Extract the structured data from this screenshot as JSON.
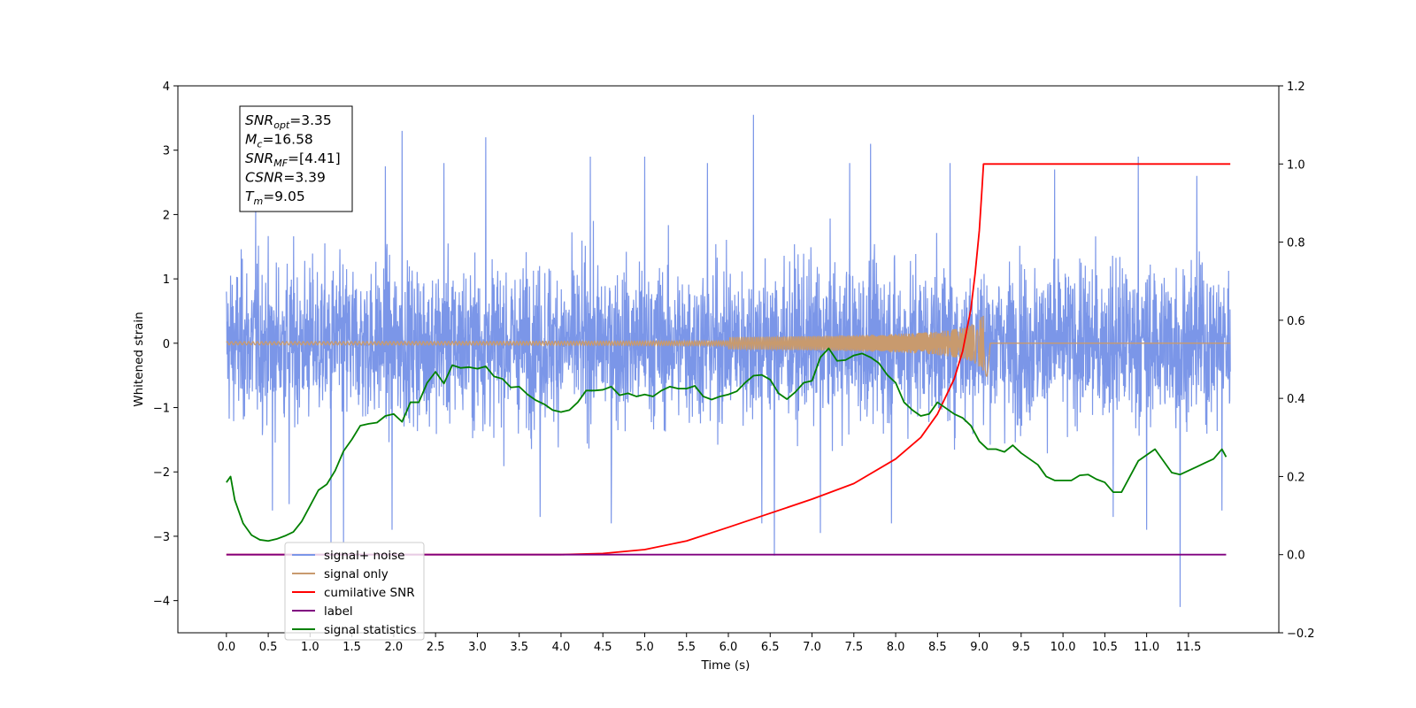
{
  "chart_data": {
    "type": "line",
    "title": "",
    "xlabel": "Time (s)",
    "ylabel": "Whitened strain",
    "y2label": "",
    "xlim": [
      -0.58,
      12.58
    ],
    "ylim": [
      -4.5,
      4.0
    ],
    "y2lim": [
      -0.2,
      1.2
    ],
    "x_ticks": [
      "0.0",
      "0.5",
      "1.0",
      "1.5",
      "2.0",
      "2.5",
      "3.0",
      "3.5",
      "4.0",
      "4.5",
      "5.0",
      "5.5",
      "6.0",
      "6.5",
      "7.0",
      "7.5",
      "8.0",
      "8.5",
      "9.0",
      "9.5",
      "10.0",
      "10.5",
      "11.0",
      "11.5"
    ],
    "y_ticks": [
      "4",
      "3",
      "2",
      "1",
      "0",
      "−1",
      "−2",
      "−3",
      "−4"
    ],
    "y2_ticks": [
      "1.2",
      "1.0",
      "0.8",
      "0.6",
      "0.4",
      "0.2",
      "0.0",
      "−0.2"
    ],
    "grid": false,
    "legend_position": "lower-left",
    "info_box": {
      "lines": [
        {
          "sym": "SNR",
          "sub": "opt",
          "val": "=3.35"
        },
        {
          "sym": "M",
          "sub": "c",
          "val": "=16.58"
        },
        {
          "sym": "SNR",
          "sub": "MF",
          "val": "=[4.41]"
        },
        {
          "sym": "CSNR",
          "sub": "",
          "val": "=3.39"
        },
        {
          "sym": "T",
          "sub": "m",
          "val": "=9.05"
        }
      ]
    },
    "series": [
      {
        "name": "signal+ noise",
        "color": "#7b96e8",
        "axis": "left",
        "kind": "noise",
        "x_range": [
          0.0,
          12.0
        ],
        "envelope": 1.55,
        "spikes": [
          [
            0.05,
            1.05
          ],
          [
            0.35,
            2.1
          ],
          [
            0.55,
            -2.6
          ],
          [
            0.75,
            -2.5
          ],
          [
            1.25,
            -3.1
          ],
          [
            1.4,
            -3.1
          ],
          [
            1.9,
            2.75
          ],
          [
            1.98,
            -2.9
          ],
          [
            2.1,
            3.3
          ],
          [
            2.6,
            2.8
          ],
          [
            3.1,
            3.2
          ],
          [
            3.75,
            -2.7
          ],
          [
            4.35,
            2.9
          ],
          [
            4.6,
            -2.8
          ],
          [
            5.0,
            2.9
          ],
          [
            5.75,
            2.8
          ],
          [
            6.3,
            3.55
          ],
          [
            6.4,
            -2.8
          ],
          [
            6.55,
            -3.3
          ],
          [
            7.1,
            -2.95
          ],
          [
            7.45,
            2.8
          ],
          [
            7.7,
            3.1
          ],
          [
            7.95,
            -2.8
          ],
          [
            8.65,
            2.8
          ],
          [
            9.9,
            2.7
          ],
          [
            10.6,
            -2.7
          ],
          [
            10.9,
            2.9
          ],
          [
            11.0,
            -2.9
          ],
          [
            11.4,
            -4.1
          ],
          [
            11.6,
            2.6
          ],
          [
            11.9,
            -2.6
          ]
        ]
      },
      {
        "name": "signal only",
        "color": "#c89a6e",
        "axis": "left",
        "kind": "chirp",
        "x_range": [
          0.0,
          12.0
        ],
        "merger_time": 9.05,
        "peak_amplitude": 0.5,
        "ringdown_min": -0.6
      },
      {
        "name": "cumilative SNR",
        "color": "#ff0000",
        "axis": "right",
        "x": [
          0.0,
          4.0,
          4.5,
          5.0,
          5.5,
          6.0,
          6.5,
          7.0,
          7.5,
          8.0,
          8.3,
          8.5,
          8.7,
          8.8,
          8.9,
          8.95,
          9.0,
          9.03,
          9.05,
          12.0
        ],
        "values": [
          0.0,
          0.0,
          0.003,
          0.013,
          0.035,
          0.07,
          0.106,
          0.142,
          0.182,
          0.245,
          0.3,
          0.36,
          0.45,
          0.52,
          0.63,
          0.72,
          0.83,
          0.93,
          1.0,
          1.0
        ]
      },
      {
        "name": "label",
        "color": "#800080",
        "axis": "right",
        "x": [
          0.0,
          11.95
        ],
        "values": [
          0.0,
          0.0
        ]
      },
      {
        "name": "signal statistics",
        "color": "#008000",
        "axis": "right",
        "x": [
          0.0,
          0.05,
          0.1,
          0.2,
          0.3,
          0.4,
          0.5,
          0.6,
          0.7,
          0.8,
          0.9,
          1.0,
          1.1,
          1.2,
          1.3,
          1.4,
          1.5,
          1.6,
          1.7,
          1.8,
          1.9,
          2.0,
          2.1,
          2.2,
          2.3,
          2.4,
          2.5,
          2.6,
          2.7,
          2.8,
          2.9,
          3.0,
          3.1,
          3.2,
          3.3,
          3.4,
          3.5,
          3.6,
          3.7,
          3.8,
          3.9,
          4.0,
          4.1,
          4.2,
          4.3,
          4.4,
          4.5,
          4.6,
          4.7,
          4.8,
          4.9,
          5.0,
          5.1,
          5.2,
          5.3,
          5.4,
          5.5,
          5.6,
          5.7,
          5.8,
          5.9,
          6.0,
          6.1,
          6.2,
          6.3,
          6.4,
          6.5,
          6.6,
          6.7,
          6.8,
          6.9,
          7.0,
          7.1,
          7.2,
          7.3,
          7.4,
          7.5,
          7.6,
          7.7,
          7.8,
          7.9,
          8.0,
          8.1,
          8.2,
          8.3,
          8.4,
          8.5,
          8.6,
          8.7,
          8.8,
          8.9,
          9.0,
          9.1,
          9.2,
          9.3,
          9.4,
          9.5,
          9.6,
          9.7,
          9.8,
          9.9,
          10.0,
          10.1,
          10.2,
          10.3,
          10.4,
          10.5,
          10.6,
          10.7,
          10.8,
          10.9,
          11.0,
          11.1,
          11.2,
          11.3,
          11.4,
          11.5,
          11.6,
          11.7,
          11.8,
          11.9,
          11.95
        ],
        "values": [
          0.185,
          0.2,
          0.14,
          0.08,
          0.05,
          0.038,
          0.035,
          0.04,
          0.048,
          0.058,
          0.085,
          0.125,
          0.165,
          0.18,
          0.215,
          0.265,
          0.295,
          0.33,
          0.335,
          0.338,
          0.355,
          0.36,
          0.34,
          0.39,
          0.39,
          0.44,
          0.468,
          0.438,
          0.485,
          0.478,
          0.48,
          0.476,
          0.482,
          0.456,
          0.45,
          0.428,
          0.43,
          0.41,
          0.395,
          0.385,
          0.37,
          0.365,
          0.37,
          0.39,
          0.42,
          0.42,
          0.422,
          0.43,
          0.408,
          0.413,
          0.405,
          0.41,
          0.405,
          0.42,
          0.43,
          0.425,
          0.425,
          0.432,
          0.405,
          0.397,
          0.405,
          0.41,
          0.418,
          0.44,
          0.458,
          0.46,
          0.448,
          0.413,
          0.398,
          0.416,
          0.44,
          0.445,
          0.505,
          0.528,
          0.496,
          0.498,
          0.51,
          0.515,
          0.505,
          0.49,
          0.46,
          0.44,
          0.39,
          0.37,
          0.355,
          0.36,
          0.39,
          0.375,
          0.36,
          0.35,
          0.33,
          0.29,
          0.27,
          0.27,
          0.263,
          0.28,
          0.26,
          0.245,
          0.23,
          0.2,
          0.19,
          0.19,
          0.19,
          0.203,
          0.205,
          0.193,
          0.185,
          0.16,
          0.16,
          0.2,
          0.24,
          0.255,
          0.27,
          0.24,
          0.21,
          0.205,
          0.215,
          0.225,
          0.235,
          0.245,
          0.27,
          0.25
        ]
      }
    ]
  }
}
